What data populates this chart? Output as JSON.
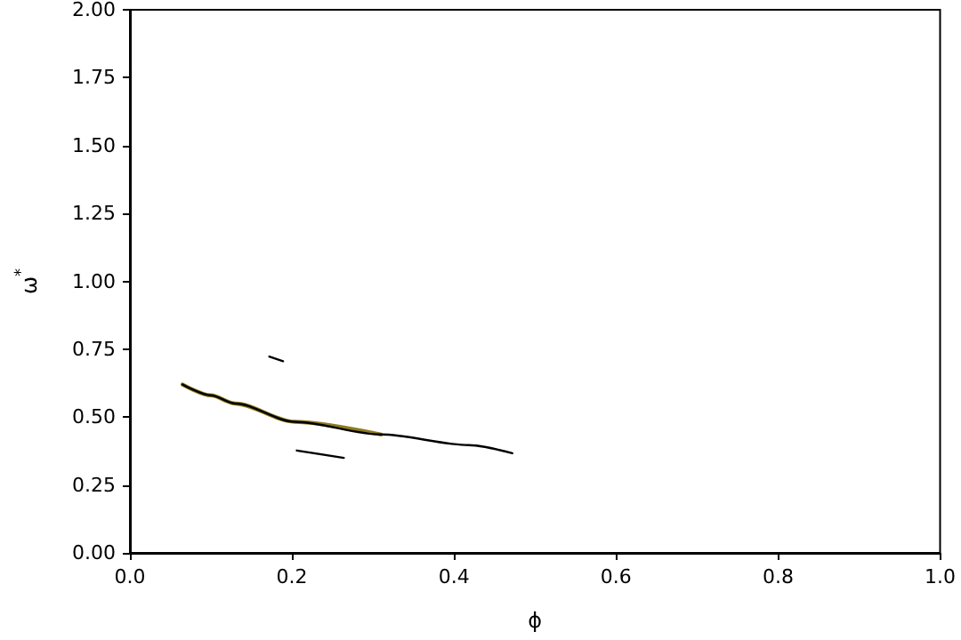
{
  "chart_data": {
    "type": "line",
    "xlabel": "ϕ",
    "ylabel": "ω$^{*}$",
    "xlim": [
      0,
      1
    ],
    "ylim": [
      0,
      2
    ],
    "xticks": [
      {
        "value": 0,
        "label": "0.0"
      },
      {
        "value": 0.2,
        "label": "0.2"
      },
      {
        "value": 0.4,
        "label": "0.4"
      },
      {
        "value": 0.6,
        "label": "0.6"
      },
      {
        "value": 0.8,
        "label": "0.8"
      },
      {
        "value": 1,
        "label": "1.0"
      }
    ],
    "yticks": [
      {
        "value": 0,
        "label": "0.00"
      },
      {
        "value": 0.25,
        "label": "0.25"
      },
      {
        "value": 0.5,
        "label": "0.50"
      },
      {
        "value": 0.75,
        "label": "0.75"
      },
      {
        "value": 1,
        "label": "1.00"
      },
      {
        "value": 1.25,
        "label": "1.25"
      },
      {
        "value": 1.5,
        "label": "1.50"
      },
      {
        "value": 1.75,
        "label": "1.75"
      },
      {
        "value": 2,
        "label": "2.00"
      }
    ],
    "grid": false,
    "marker": "none",
    "line_style": "solid",
    "series": [
      {
        "color": "#8c7a1e",
        "x": [
          0.065,
          0.1,
          0.13,
          0.203,
          0.31
        ],
        "values": [
          0.62,
          0.58,
          0.55,
          0.483,
          0.436
        ]
      },
      {
        "color": "#000000",
        "x": [
          0.065,
          0.1,
          0.13,
          0.203,
          0.31,
          0.418,
          0.472
        ],
        "values": [
          0.62,
          0.58,
          0.55,
          0.483,
          0.436,
          0.397,
          0.367
        ]
      },
      {
        "color": "#000000",
        "x": [
          0.172,
          0.189
        ],
        "values": [
          0.723,
          0.706
        ]
      },
      {
        "color": "#000000",
        "x": [
          0.206,
          0.264
        ],
        "values": [
          0.377,
          0.35
        ]
      }
    ]
  }
}
